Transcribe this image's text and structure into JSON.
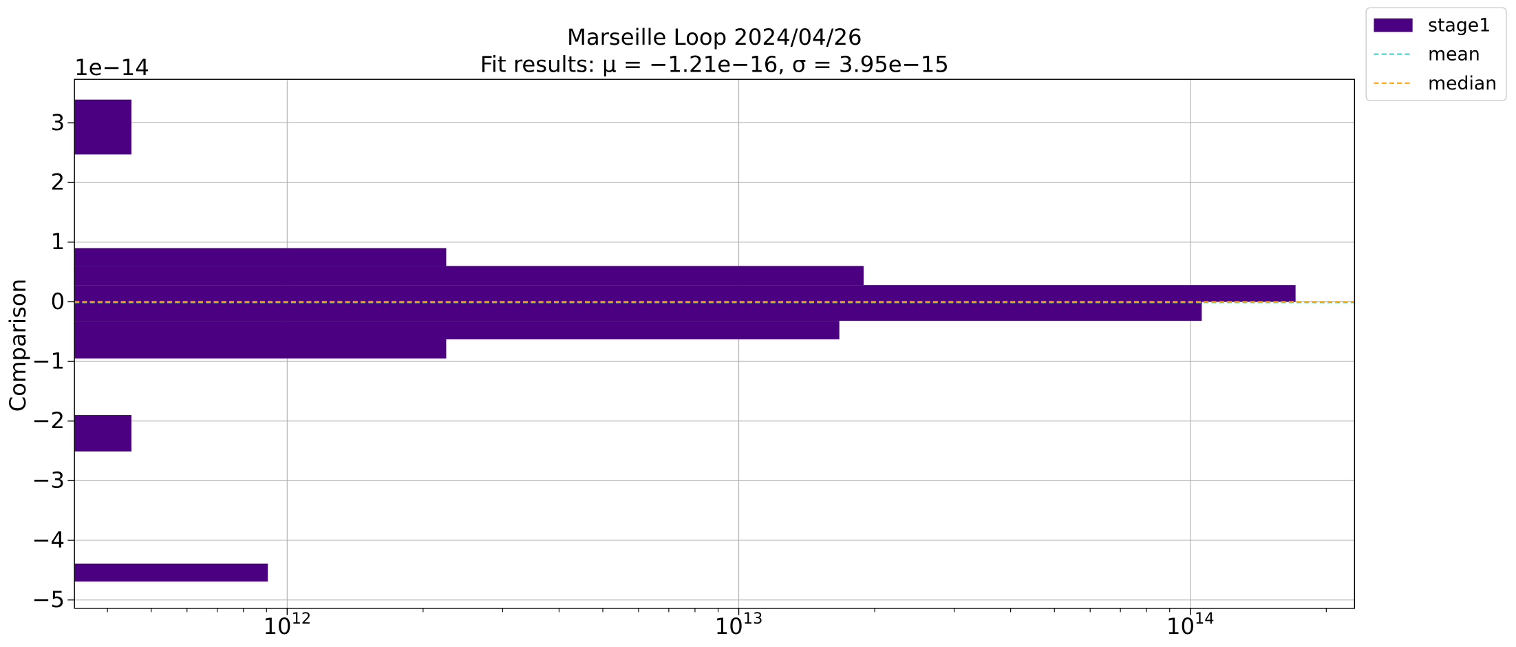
{
  "chart_data": {
    "type": "hist-horizontal",
    "title": "Marseille Loop 2024/04/26",
    "subtitle": "Fit results: μ = −1.21e−16,  σ = 3.95e−15",
    "y_label": "Comparison",
    "y_offset_label": "1e−14",
    "x_scale": "log",
    "grid": true,
    "legend": "outside upper right",
    "xlim": [
      338000000000,
      231000000000000
    ],
    "xticks": [
      {
        "value": 1000000000000,
        "label": "10",
        "exponent": "12"
      },
      {
        "value": 10000000000000,
        "label": "10",
        "exponent": "13"
      },
      {
        "value": 100000000000000,
        "label": "10",
        "exponent": "14"
      }
    ],
    "ylim": [
      -5.14,
      3.73
    ],
    "yticks": [
      {
        "value": -5,
        "label": "−5"
      },
      {
        "value": -4,
        "label": "−4"
      },
      {
        "value": -3,
        "label": "−3"
      },
      {
        "value": -2,
        "label": "−2"
      },
      {
        "value": -1,
        "label": "−1"
      },
      0,
      1,
      2,
      3
    ],
    "series": [
      {
        "name": "stage1",
        "color": "#4b0082",
        "bins": [
          -4.69,
          -4.39,
          -2.51,
          -1.9,
          -0.95,
          -0.63,
          -0.32,
          0,
          0.28,
          0.6,
          0.9,
          2.47,
          3.39
        ],
        "values": [
          906000000000,
          0,
          452000000000,
          0,
          2250000000000,
          16700000000000,
          106000000000000,
          171000000000000,
          18900000000000,
          2250000000000,
          0,
          452000000000
        ]
      }
    ],
    "lines": [
      {
        "name": "mean",
        "color": "#40d0d0",
        "value": -0.0121
      },
      {
        "name": "median",
        "color": "#ffa500",
        "value": 0
      }
    ]
  }
}
